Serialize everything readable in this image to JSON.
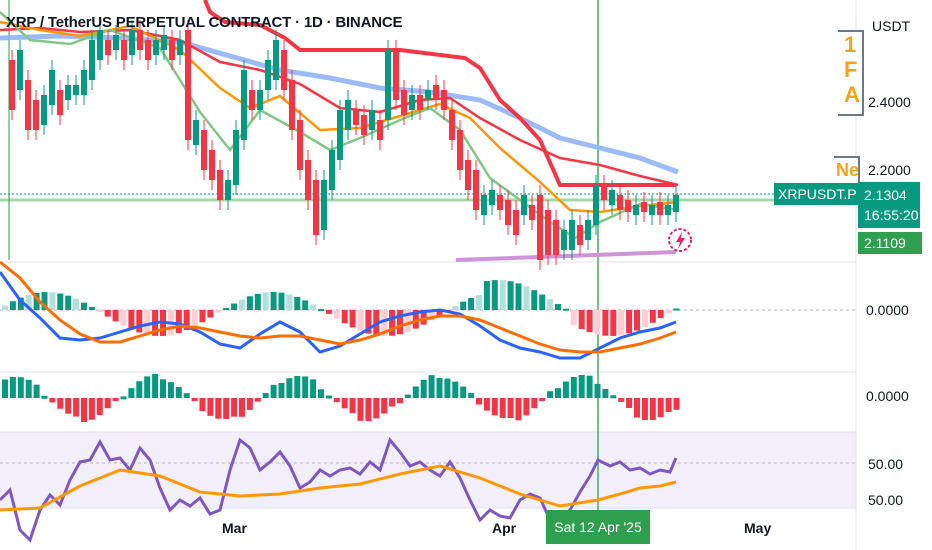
{
  "header": {
    "title": "XRP / TetherUS PERPETUAL CONTRACT · 1D · BINANCE",
    "currency": "USDT"
  },
  "price_axis": {
    "labels": [
      "2.4000",
      "2.2000"
    ],
    "symbol_tag": "XRPUSDT.P",
    "last_price": "2.1304",
    "countdown": "16:55:20",
    "cursor_price": "2.1109",
    "colors": {
      "tag": "#089981",
      "cursor": "#2e9f4f"
    }
  },
  "indicator_axis": {
    "macd_zero": "0.0000",
    "hist_zero": "0.0000",
    "rsi_level": "50.00",
    "rsi_lower": "50.00"
  },
  "time_axis": {
    "labels": [
      "Mar",
      "Apr",
      "May"
    ],
    "cursor_date": "Sat 12 Apr '25"
  },
  "side_notes": {
    "top_box": [
      "1",
      "F",
      "A"
    ],
    "mid_box": [
      "Ne"
    ]
  },
  "colors": {
    "up_candle": "#089981",
    "down_candle": "#f23645",
    "ema_red": "#f23645",
    "ema_orange": "#ff9800",
    "ema_green": "#81c784",
    "ema_blue": "#90b4f7",
    "rsi_line": "#7e57c2",
    "rsi_ma": "#ff9800"
  }
}
